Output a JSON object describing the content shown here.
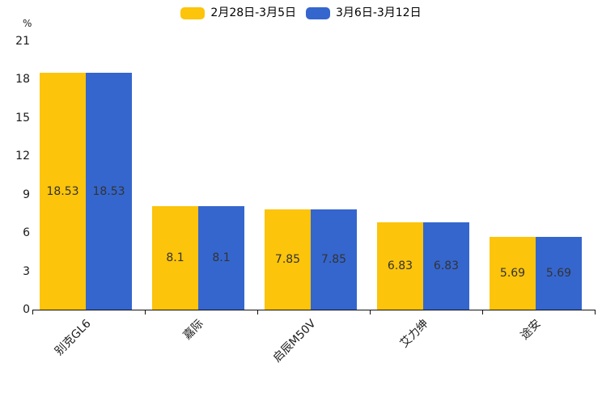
{
  "chart_data": {
    "type": "bar",
    "title": "",
    "unit_label": "%",
    "categories": [
      "别克GL6",
      "嘉际",
      "启辰M50V",
      "艾力绅",
      "途安"
    ],
    "series": [
      {
        "name": "2月28日-3月5日",
        "color": "#fcc40a",
        "values": [
          18.53,
          8.1,
          7.85,
          6.83,
          5.69
        ]
      },
      {
        "name": "3月6日-3月12日",
        "color": "#3566ce",
        "values": [
          18.53,
          8.1,
          7.85,
          6.83,
          5.69
        ]
      }
    ],
    "ylim": [
      0,
      21
    ],
    "yticks": [
      0,
      3,
      6,
      9,
      12,
      15,
      18,
      21
    ],
    "grid": false,
    "legend_position": "top",
    "value_label_color": "#333333",
    "axis_color": "#111111"
  }
}
